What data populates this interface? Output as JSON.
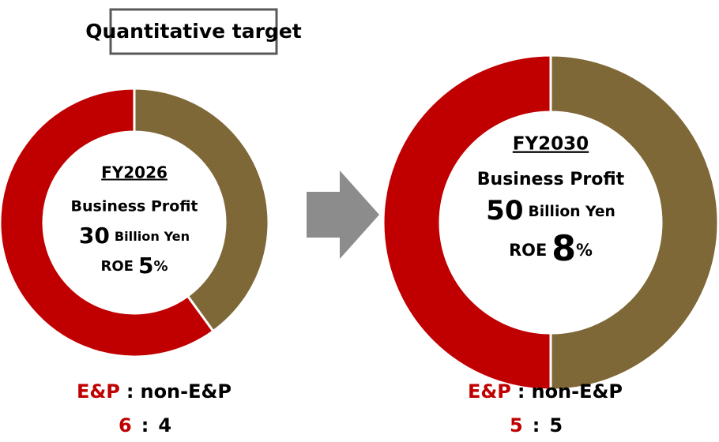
{
  "title": "Quantitative target",
  "chart_data": [
    {
      "type": "donut",
      "categories": [
        "E&P",
        "non-E&P"
      ],
      "values": [
        6,
        4
      ],
      "colors": [
        "#c00000",
        "#7b6b3a"
      ],
      "separator": ":",
      "center": {
        "period": "FY2026",
        "metric": "Business Profit",
        "profit": 30,
        "profit_unit": "Billion Yen",
        "roe_label": "ROE",
        "roe": 5,
        "roe_unit": "%"
      }
    },
    {
      "type": "donut",
      "categories": [
        "E&P",
        "non-E&P"
      ],
      "values": [
        5,
        5
      ],
      "colors": [
        "#c00000",
        "#7b6b3a"
      ],
      "separator": ":",
      "center": {
        "period": "FY2030",
        "metric": "Business Profit",
        "profit": 50,
        "profit_unit": "Billion Yen",
        "roe_label": "ROE",
        "roe": 8,
        "roe_unit": "%"
      }
    }
  ]
}
